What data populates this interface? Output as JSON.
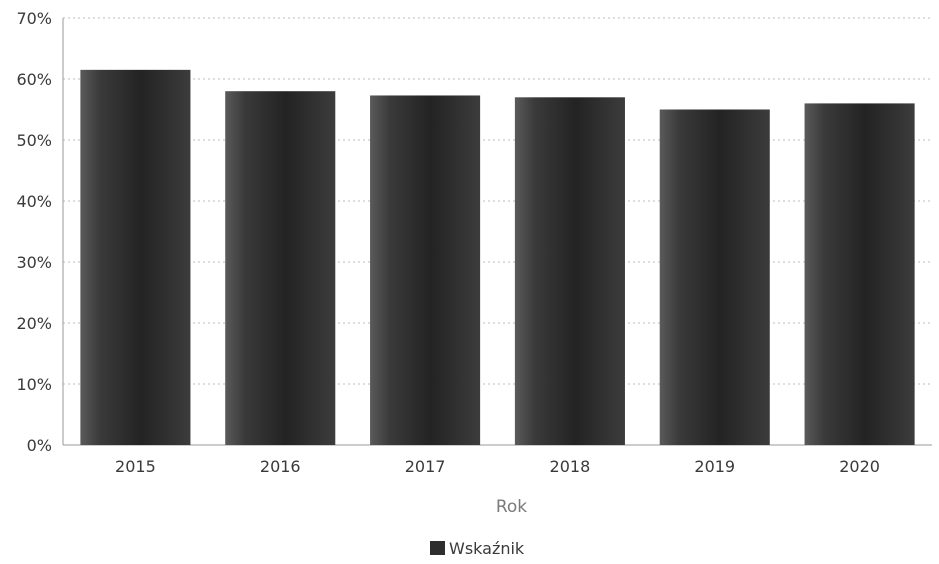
{
  "chart_data": {
    "type": "bar",
    "categories": [
      "2015",
      "2016",
      "2017",
      "2018",
      "2019",
      "2020"
    ],
    "series": [
      {
        "name": "Wskaźnik",
        "values": [
          61.5,
          58.0,
          57.3,
          57.0,
          55.0,
          56.0
        ],
        "color": "#2e2e2e"
      }
    ],
    "xlabel": "Rok",
    "ylabel": "",
    "ylim": [
      0,
      70
    ],
    "yticks": [
      0,
      10,
      20,
      30,
      40,
      50,
      60,
      70
    ],
    "ytick_labels": [
      "0%",
      "10%",
      "20%",
      "30%",
      "40%",
      "50%",
      "60%",
      "70%"
    ],
    "grid": true,
    "legend": {
      "position": "bottom-center",
      "entries": [
        "Wskaźnik"
      ]
    }
  }
}
